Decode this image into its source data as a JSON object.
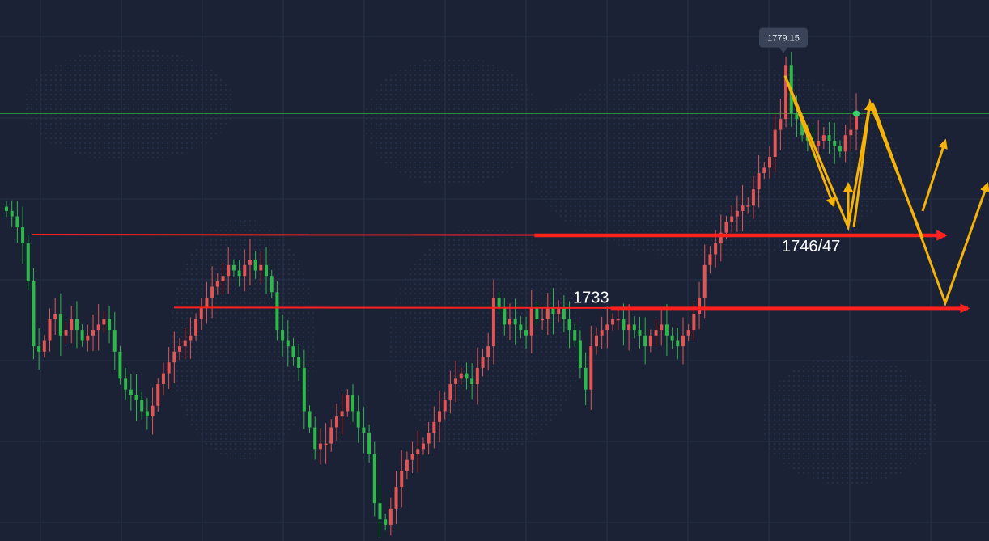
{
  "colors": {
    "background": "#1b2236",
    "grid": "#2a3248",
    "up": "#e25555",
    "down": "#2fb84a",
    "level_line": "#ff2020",
    "projection": "#f5b20a",
    "price_line": "#2c8a3e"
  },
  "chart_data": {
    "type": "candlestick",
    "title": "",
    "xlabel": "",
    "ylabel": "",
    "ylim": [
      1690,
      1790
    ],
    "grid": true,
    "current_price_line": 1769,
    "peak_tooltip": "1779.15",
    "levels": [
      {
        "label": "1746/47",
        "value": 1746.5
      },
      {
        "label": "1733",
        "value": 1733
      }
    ],
    "projection_path_a": [
      [
        970,
        1776
      ],
      [
        1048,
        1748
      ],
      [
        1075,
        1771
      ],
      [
        1140,
        1746
      ]
    ],
    "projection_path_b": [
      [
        1078,
        1771
      ],
      [
        1168,
        1734
      ],
      [
        1220,
        1756
      ]
    ],
    "projection_arrows": [
      [
        [
          1140,
          1751
        ],
        [
          1168,
          1764
        ]
      ],
      [
        [
          1048,
          1748
        ],
        [
          1048,
          1756
        ]
      ]
    ],
    "closes": [
      1751,
      1750,
      1748,
      1745,
      1738,
      1726,
      1725,
      1727,
      1731,
      1732,
      1728,
      1729,
      1731,
      1729,
      1727,
      1728,
      1729,
      1730,
      1731,
      1729,
      1725,
      1720,
      1718,
      1717,
      1716,
      1714,
      1713,
      1715,
      1719,
      1721,
      1723,
      1725,
      1726,
      1727,
      1728,
      1731,
      1733,
      1735,
      1737,
      1738,
      1739,
      1741,
      1740,
      1739,
      1741,
      1742,
      1740,
      1741,
      1739,
      1736,
      1729,
      1727,
      1726,
      1724,
      1722,
      1714,
      1711,
      1707,
      1708,
      1708,
      1711,
      1713,
      1714,
      1717,
      1714,
      1711,
      1710,
      1706,
      1697,
      1694,
      1693,
      1696,
      1700,
      1703,
      1705,
      1706,
      1707,
      1708,
      1710,
      1712,
      1714,
      1716,
      1719,
      1720,
      1721,
      1720,
      1719,
      1722,
      1724,
      1726,
      1735,
      1733,
      1730,
      1731,
      1730,
      1729,
      1728,
      1733,
      1731,
      1731,
      1733,
      1732,
      1733,
      1731,
      1729,
      1727,
      1722,
      1718,
      1726,
      1728,
      1729,
      1730,
      1731,
      1731,
      1729,
      1730,
      1729,
      1728,
      1726,
      1728,
      1729,
      1730,
      1728,
      1727,
      1726,
      1728,
      1729,
      1732,
      1735,
      1741,
      1743,
      1745,
      1747,
      1749,
      1750,
      1751,
      1752,
      1752,
      1755,
      1758,
      1759,
      1761,
      1766,
      1768,
      1778,
      1769,
      1768,
      1765,
      1764,
      1763,
      1764,
      1765,
      1764,
      1763,
      1762,
      1765,
      1766,
      1769
    ]
  }
}
